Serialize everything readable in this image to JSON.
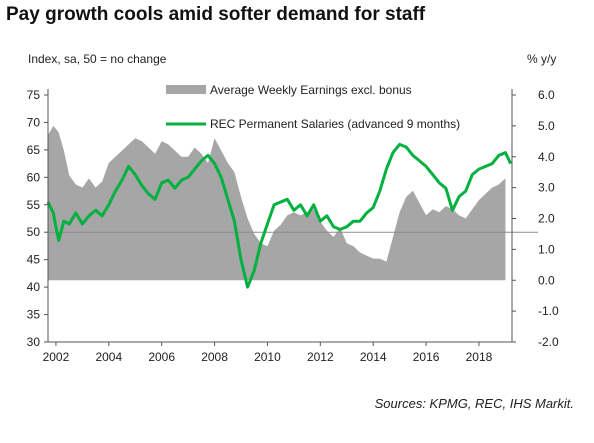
{
  "chart_data": {
    "type": "area",
    "title": "Pay growth cools amid softer demand for staff",
    "ylabel_left": "Index, sa, 50 = no change",
    "ylabel_right": "% y/y",
    "source": "Sources: KPMG, REC, IHS Markit.",
    "xlim": [
      2001.7,
      2019.25
    ],
    "ylim_left": [
      30,
      75
    ],
    "ylim_right": [
      -2.0,
      6.0
    ],
    "reference_line_left": 50,
    "x_ticks": [
      2002,
      2004,
      2006,
      2008,
      2010,
      2012,
      2014,
      2016,
      2018
    ],
    "x_tick_labels": [
      "2002",
      "2004",
      "2006",
      "2008",
      "2010",
      "2012",
      "2014",
      "2016",
      "2018"
    ],
    "y_left_ticks": [
      30,
      35,
      40,
      45,
      50,
      55,
      60,
      65,
      70,
      75
    ],
    "y_left_tick_labels": [
      "30",
      "35",
      "40",
      "45",
      "50",
      "55",
      "60",
      "65",
      "70",
      "75"
    ],
    "y_right_ticks": [
      -2,
      -1,
      0,
      1,
      2,
      3,
      4,
      5,
      6
    ],
    "y_right_tick_labels": [
      "-2.0",
      "-1.0",
      "0.0",
      "1.0",
      "2.0",
      "3.0",
      "4.0",
      "5.0",
      "6.0"
    ],
    "series": [
      {
        "name": "Average Weekly Earnings excl. bonus",
        "axis": "right",
        "type": "area",
        "color": "#a6a6a6",
        "x": [
          2001.7,
          2001.9,
          2002.1,
          2002.3,
          2002.5,
          2002.75,
          2003.0,
          2003.25,
          2003.5,
          2003.75,
          2004.0,
          2004.25,
          2004.5,
          2004.75,
          2005.0,
          2005.25,
          2005.5,
          2005.75,
          2006.0,
          2006.25,
          2006.5,
          2006.75,
          2007.0,
          2007.25,
          2007.5,
          2007.75,
          2008.0,
          2008.25,
          2008.5,
          2008.75,
          2009.0,
          2009.25,
          2009.5,
          2009.75,
          2010.0,
          2010.25,
          2010.5,
          2010.75,
          2011.0,
          2011.25,
          2011.5,
          2011.75,
          2012.0,
          2012.25,
          2012.5,
          2012.75,
          2013.0,
          2013.25,
          2013.5,
          2013.75,
          2014.0,
          2014.25,
          2014.5,
          2014.75,
          2015.0,
          2015.25,
          2015.5,
          2015.75,
          2016.0,
          2016.25,
          2016.5,
          2016.75,
          2017.0,
          2017.25,
          2017.5,
          2017.75,
          2018.0,
          2018.25,
          2018.5,
          2018.75,
          2019.0
        ],
        "values": [
          4.7,
          5.0,
          4.8,
          4.2,
          3.4,
          3.1,
          3.0,
          3.3,
          3.0,
          3.2,
          3.8,
          4.0,
          4.2,
          4.4,
          4.6,
          4.5,
          4.3,
          4.1,
          4.5,
          4.4,
          4.2,
          4.0,
          4.0,
          4.3,
          4.1,
          3.8,
          4.6,
          4.2,
          3.8,
          3.5,
          2.7,
          2.0,
          1.5,
          1.2,
          1.1,
          1.6,
          1.8,
          2.1,
          2.2,
          2.1,
          2.2,
          2.3,
          1.9,
          1.6,
          1.4,
          1.7,
          1.2,
          1.1,
          0.9,
          0.8,
          0.7,
          0.7,
          0.6,
          1.4,
          2.2,
          2.7,
          2.9,
          2.5,
          2.1,
          2.3,
          2.2,
          2.4,
          2.3,
          2.1,
          2.0,
          2.3,
          2.6,
          2.8,
          3.0,
          3.1,
          3.3
        ]
      },
      {
        "name": "REC Permanent Salaries (advanced 9 months)",
        "axis": "left",
        "type": "line",
        "color": "#00b140",
        "x": [
          2001.7,
          2001.9,
          2002.1,
          2002.3,
          2002.5,
          2002.75,
          2003.0,
          2003.25,
          2003.5,
          2003.75,
          2004.0,
          2004.25,
          2004.5,
          2004.75,
          2005.0,
          2005.25,
          2005.5,
          2005.75,
          2006.0,
          2006.25,
          2006.5,
          2006.75,
          2007.0,
          2007.25,
          2007.5,
          2007.75,
          2008.0,
          2008.25,
          2008.5,
          2008.75,
          2009.0,
          2009.25,
          2009.5,
          2009.75,
          2010.0,
          2010.25,
          2010.5,
          2010.75,
          2011.0,
          2011.25,
          2011.5,
          2011.75,
          2012.0,
          2012.25,
          2012.5,
          2012.75,
          2013.0,
          2013.25,
          2013.5,
          2013.75,
          2014.0,
          2014.25,
          2014.5,
          2014.75,
          2015.0,
          2015.25,
          2015.5,
          2015.75,
          2016.0,
          2016.25,
          2016.5,
          2016.75,
          2017.0,
          2017.25,
          2017.5,
          2017.75,
          2018.0,
          2018.25,
          2018.5,
          2018.75,
          2019.0,
          2019.2
        ],
        "values": [
          55.5,
          53.5,
          48.5,
          52.0,
          51.5,
          53.5,
          51.5,
          53.0,
          54.0,
          53.0,
          55.0,
          57.5,
          59.5,
          62.0,
          60.5,
          58.5,
          57.0,
          56.0,
          59.0,
          59.5,
          58.0,
          59.5,
          60.0,
          61.5,
          63.0,
          64.0,
          62.5,
          60.0,
          56.0,
          52.0,
          45.0,
          40.0,
          43.0,
          48.0,
          51.5,
          55.0,
          55.5,
          56.0,
          54.0,
          55.0,
          53.0,
          55.0,
          52.0,
          53.0,
          51.0,
          50.5,
          51.0,
          52.0,
          52.0,
          53.5,
          54.5,
          57.5,
          61.5,
          64.5,
          66.0,
          65.5,
          64.0,
          63.0,
          62.0,
          60.5,
          59.0,
          58.0,
          54.0,
          56.5,
          57.5,
          60.5,
          61.5,
          62.0,
          62.5,
          64.0,
          64.5,
          62.5
        ]
      }
    ]
  }
}
